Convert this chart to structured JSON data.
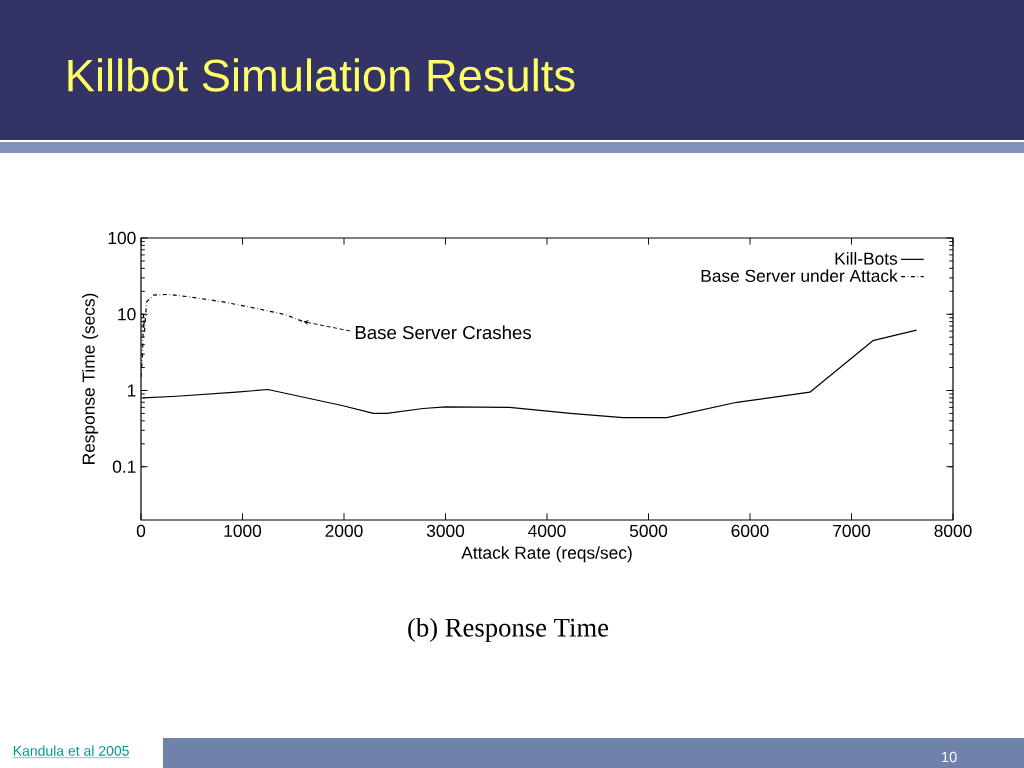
{
  "chart_data": {
    "type": "line",
    "title": "Killbot Simulation Results",
    "subtitle": "(b) Response Time",
    "xlabel": "Attack Rate (reqs/sec)",
    "ylabel": "Response Time (secs)",
    "xlim": [
      0,
      8000
    ],
    "xticks": [
      0,
      1000,
      2000,
      3000,
      4000,
      5000,
      6000,
      7000,
      8000
    ],
    "ylim": [
      0.02,
      100
    ],
    "yticks": [
      0.1,
      1,
      10,
      100
    ],
    "log": "y",
    "grid": false,
    "legend": "top right",
    "marker": "none",
    "series": [
      {
        "name": "Kill-Bots",
        "color": "#000000",
        "line_style": "solid",
        "x": [
          20,
          350,
          940,
          1250,
          1990,
          2290,
          2420,
          2780,
          3000,
          3630,
          4230,
          4750,
          5180,
          5870,
          6590,
          7210,
          7640
        ],
        "values": [
          0.8,
          0.84,
          0.95,
          1.03,
          0.63,
          0.5,
          0.5,
          0.58,
          0.61,
          0.6,
          0.5,
          0.44,
          0.44,
          0.7,
          0.95,
          4.5,
          6.2
        ]
      },
      {
        "name": "Base Server under Attack",
        "color": "#000000",
        "line_style": "dashdot",
        "x": [
          0,
          15,
          25,
          35,
          55,
          120,
          270,
          480,
          810,
          1140,
          1420,
          1600
        ],
        "values": [
          1.5,
          3,
          10,
          6,
          14.5,
          17.8,
          18.2,
          16.9,
          14.5,
          11.9,
          9.9,
          8
        ]
      }
    ],
    "annotations": [
      {
        "text": "Base Server Crashes",
        "x": 1600,
        "y": 8
      },
      "Kandula et al 2005",
      "10"
    ]
  }
}
